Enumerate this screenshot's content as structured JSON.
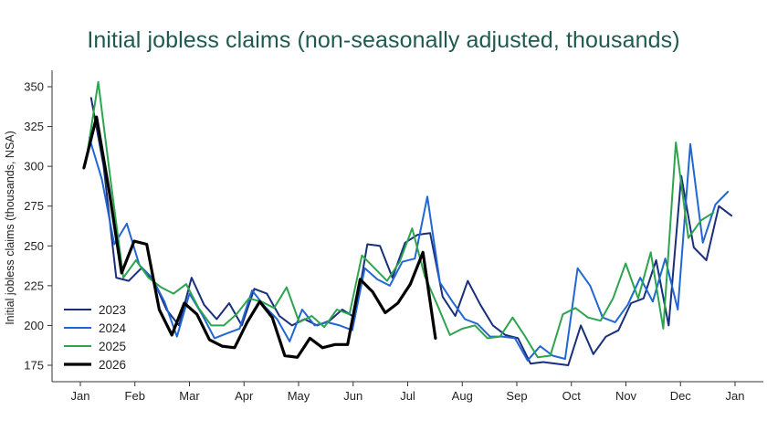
{
  "chart_data": {
    "type": "line",
    "title": "Initial jobless claims (non-seasonally adjusted, thousands)",
    "xlabel": "",
    "ylabel": "Initial jobless claims (thousands, NSA)",
    "x_ticks": [
      "Jan",
      "Feb",
      "Mar",
      "Apr",
      "May",
      "Jun",
      "Jul",
      "Aug",
      "Sep",
      "Oct",
      "Nov",
      "Dec",
      "Jan"
    ],
    "y_ticks": [
      175,
      200,
      225,
      250,
      275,
      300,
      325,
      350
    ],
    "ylim": [
      168,
      360
    ],
    "grid": false,
    "legend_position": "bottom-left",
    "series": [
      {
        "name": "2023",
        "color": "#1a2f7a",
        "width": 2,
        "x": [
          "2023-01-07",
          "2023-01-14",
          "2023-01-21",
          "2023-01-28",
          "2023-02-04",
          "2023-02-11",
          "2023-02-18",
          "2023-02-25",
          "2023-03-04",
          "2023-03-11",
          "2023-03-18",
          "2023-03-25",
          "2023-04-01",
          "2023-04-08",
          "2023-04-15",
          "2023-04-22",
          "2023-04-29",
          "2023-05-06",
          "2023-05-13",
          "2023-05-20",
          "2023-05-27",
          "2023-06-03",
          "2023-06-10",
          "2023-06-17",
          "2023-06-24",
          "2023-07-01",
          "2023-07-08",
          "2023-07-15",
          "2023-07-22",
          "2023-07-29",
          "2023-08-05",
          "2023-08-12",
          "2023-08-19",
          "2023-08-26",
          "2023-09-02",
          "2023-09-09",
          "2023-09-16",
          "2023-09-23",
          "2023-09-30",
          "2023-10-07",
          "2023-10-14",
          "2023-10-21",
          "2023-10-28",
          "2023-11-04",
          "2023-11-11",
          "2023-11-18",
          "2023-11-25",
          "2023-12-02",
          "2023-12-09",
          "2023-12-16",
          "2023-12-23",
          "2023-12-30",
          "2024-01-06"
        ],
        "values": [
          343,
          300,
          230,
          228,
          236,
          228,
          210,
          200,
          230,
          213,
          204,
          214,
          200,
          223,
          220,
          206,
          200,
          204,
          200,
          203,
          210,
          205,
          251,
          250,
          230,
          252,
          257,
          258,
          218,
          206,
          228,
          213,
          200,
          194,
          192,
          176,
          177,
          176,
          175,
          200,
          182,
          193,
          197,
          214,
          217,
          241,
          200,
          294,
          249,
          241,
          275,
          269,
          null
        ]
      },
      {
        "name": "2024",
        "color": "#2167d4",
        "width": 2,
        "x": [
          "2024-01-06",
          "2024-01-13",
          "2024-01-20",
          "2024-01-27",
          "2024-02-03",
          "2024-02-10",
          "2024-02-17",
          "2024-02-24",
          "2024-03-02",
          "2024-03-09",
          "2024-03-16",
          "2024-03-23",
          "2024-03-30",
          "2024-04-06",
          "2024-04-13",
          "2024-04-20",
          "2024-04-27",
          "2024-05-04",
          "2024-05-11",
          "2024-05-18",
          "2024-05-25",
          "2024-06-01",
          "2024-06-08",
          "2024-06-15",
          "2024-06-22",
          "2024-06-29",
          "2024-07-06",
          "2024-07-13",
          "2024-07-20",
          "2024-07-27",
          "2024-08-03",
          "2024-08-10",
          "2024-08-17",
          "2024-08-24",
          "2024-08-31",
          "2024-09-07",
          "2024-09-14",
          "2024-09-21",
          "2024-09-28",
          "2024-10-05",
          "2024-10-12",
          "2024-10-19",
          "2024-10-26",
          "2024-11-02",
          "2024-11-09",
          "2024-11-16",
          "2024-11-23",
          "2024-11-30",
          "2024-12-07",
          "2024-12-14",
          "2024-12-21",
          "2024-12-28"
        ],
        "values": [
          318,
          292,
          251,
          264,
          238,
          230,
          215,
          193,
          220,
          207,
          192,
          195,
          198,
          222,
          212,
          204,
          190,
          210,
          200,
          202,
          200,
          197,
          236,
          229,
          225,
          240,
          242,
          281,
          227,
          215,
          204,
          201,
          193,
          193,
          192,
          178,
          187,
          181,
          179,
          236,
          225,
          205,
          202,
          213,
          230,
          215,
          242,
          210,
          314,
          252,
          276,
          284
        ]
      },
      {
        "name": "2025",
        "color": "#2da44e",
        "width": 2,
        "x": [
          "2025-01-04",
          "2025-01-11",
          "2025-01-18",
          "2025-01-25",
          "2025-02-01",
          "2025-02-08",
          "2025-02-15",
          "2025-02-22",
          "2025-03-01",
          "2025-03-08",
          "2025-03-15",
          "2025-03-22",
          "2025-03-29",
          "2025-04-05",
          "2025-04-12",
          "2025-04-19",
          "2025-04-26",
          "2025-05-03",
          "2025-05-10",
          "2025-05-17",
          "2025-05-24",
          "2025-05-31",
          "2025-06-07",
          "2025-06-14",
          "2025-06-21",
          "2025-06-28",
          "2025-07-05",
          "2025-07-12",
          "2025-07-19",
          "2025-07-26",
          "2025-08-02",
          "2025-08-09",
          "2025-08-16",
          "2025-08-23",
          "2025-08-30",
          "2025-09-06",
          "2025-09-13",
          "2025-09-20",
          "2025-09-27",
          "2025-10-04",
          "2025-10-11",
          "2025-10-18",
          "2025-10-25",
          "2025-11-01",
          "2025-11-08",
          "2025-11-15",
          "2025-11-22",
          "2025-11-29",
          "2025-12-06",
          "2025-12-13",
          "2025-12-20",
          "2025-12-27"
        ],
        "values": [
          302,
          353,
          290,
          230,
          241,
          230,
          224,
          220,
          226,
          211,
          200,
          200,
          207,
          217,
          215,
          211,
          224,
          202,
          206,
          199,
          210,
          207,
          244,
          236,
          228,
          240,
          261,
          231,
          213,
          194,
          198,
          200,
          192,
          193,
          205,
          193,
          180,
          181,
          207,
          211,
          205,
          203,
          217,
          239,
          217,
          246,
          198,
          315,
          255,
          266,
          271,
          null
        ]
      },
      {
        "name": "2026",
        "color": "#000000",
        "width": 3.2,
        "x": [
          "2026-01-03",
          "2026-01-10",
          "2026-01-17",
          "2026-01-24",
          "2026-01-31",
          "2026-02-07",
          "2026-02-14",
          "2026-02-21",
          "2026-02-28",
          "2026-03-07",
          "2026-03-14",
          "2026-03-21",
          "2026-03-28",
          "2026-04-04",
          "2026-04-11",
          "2026-04-18",
          "2026-04-25",
          "2026-05-02",
          "2026-05-09",
          "2026-05-16",
          "2026-05-23",
          "2026-05-30",
          "2026-06-06",
          "2026-06-13",
          "2026-06-20",
          "2026-06-27",
          "2026-07-04",
          "2026-07-11",
          "2026-07-18"
        ],
        "values": [
          299,
          331,
          285,
          233,
          253,
          251,
          210,
          194,
          214,
          207,
          191,
          187,
          186,
          202,
          215,
          205,
          181,
          180,
          192,
          186,
          188,
          188,
          229,
          221,
          208,
          214,
          226,
          246,
          192
        ]
      }
    ]
  }
}
